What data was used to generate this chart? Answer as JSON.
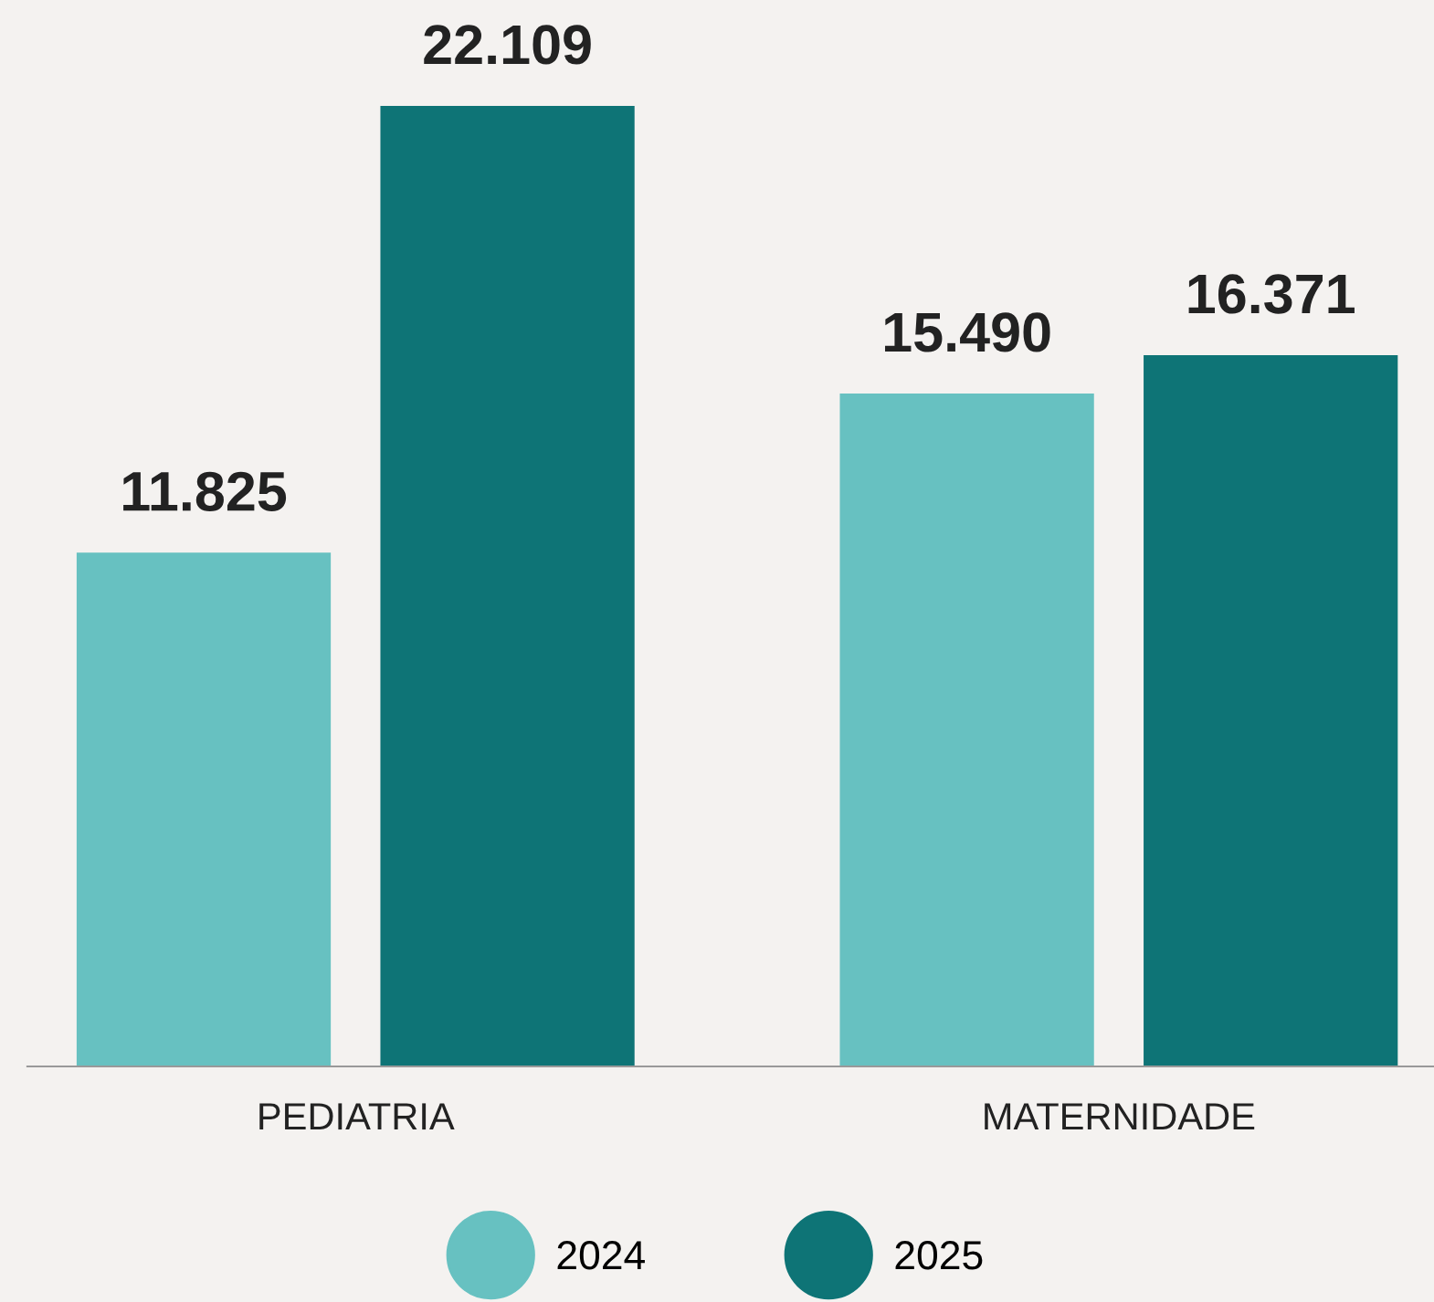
{
  "chart_data": {
    "type": "bar",
    "categories": [
      "PEDIATRIA",
      "MATERNIDADE"
    ],
    "series": [
      {
        "name": "2024",
        "color": "#67c1c1",
        "values": [
          11825,
          15490
        ],
        "value_labels": [
          "11.825",
          "15.490"
        ]
      },
      {
        "name": "2025",
        "color": "#0e7476",
        "values": [
          22109,
          16371
        ],
        "value_labels": [
          "22.109",
          "16.371"
        ]
      }
    ],
    "legend": "bottom",
    "marker": "circle",
    "grid": false
  }
}
